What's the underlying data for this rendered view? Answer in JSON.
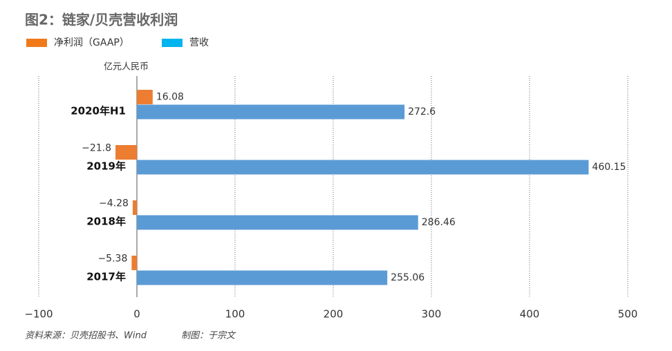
{
  "chart_data": {
    "type": "barh",
    "title": "图2：链家/贝壳营收利润",
    "unit_label": "亿元人民币",
    "source": "资料来源：贝壳招股书、Wind",
    "credit": "制图：于宗文",
    "categories": [
      "2020年H1",
      "2019年",
      "2018年",
      "2017年"
    ],
    "series": [
      {
        "name": "净利润（GAAP）",
        "color": "#ed7d31",
        "legend_color": "#f07a1a",
        "values": [
          16.08,
          -21.8,
          -4.28,
          -5.38
        ],
        "value_labels": [
          "16.08",
          "−21.8",
          "−4.28",
          "−5.38"
        ]
      },
      {
        "name": "营收",
        "color": "#5b9bd5",
        "legend_color": "#00b4f0",
        "values": [
          272.6,
          460.15,
          286.46,
          255.06
        ]
      }
    ],
    "xlim": [
      -100,
      500
    ],
    "xticks": [
      {
        "value": -100,
        "label": "−100"
      },
      0,
      100,
      200,
      300,
      400,
      500
    ],
    "grid": true
  }
}
